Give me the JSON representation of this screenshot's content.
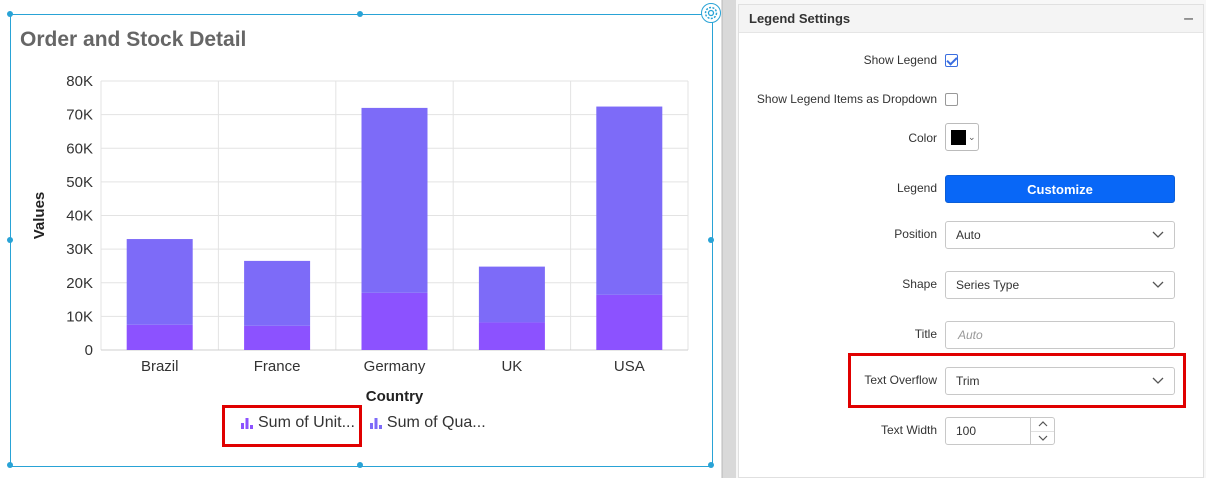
{
  "widget": {
    "title": "Order and Stock Detail"
  },
  "chart_data": {
    "type": "bar",
    "stacked": true,
    "categories": [
      "Brazil",
      "France",
      "Germany",
      "UK",
      "USA"
    ],
    "series": [
      {
        "name": "Sum of Unit...",
        "values": [
          7500,
          7200,
          17000,
          8200,
          16400
        ],
        "color": "#8c52ff"
      },
      {
        "name": "Sum of Qua...",
        "values": [
          25500,
          19300,
          55000,
          16600,
          56000
        ],
        "color": "#7d6bf8"
      }
    ],
    "xlabel": "Country",
    "ylabel": "Values",
    "ylim": [
      0,
      80000
    ],
    "yticks": [
      "0",
      "10K",
      "20K",
      "30K",
      "40K",
      "50K",
      "60K",
      "70K",
      "80K"
    ],
    "grid": true,
    "legend_position": "bottom"
  },
  "panel": {
    "title": "Legend Settings",
    "collapse_glyph": "–",
    "show_legend": {
      "label": "Show Legend",
      "checked": true
    },
    "dropdown_items": {
      "label": "Show Legend Items as Dropdown",
      "checked": false
    },
    "color": {
      "label": "Color",
      "value": "#000000"
    },
    "legend": {
      "label": "Legend",
      "button": "Customize"
    },
    "position": {
      "label": "Position",
      "value": "Auto"
    },
    "shape": {
      "label": "Shape",
      "value": "Series Type"
    },
    "title_field": {
      "label": "Title",
      "placeholder": "Auto"
    },
    "text_overflow": {
      "label": "Text Overflow",
      "value": "Trim"
    },
    "text_width": {
      "label": "Text Width",
      "value": "100"
    }
  },
  "colors": {
    "accent": "#0867f7",
    "highlight": "#e00000",
    "selection": "#29a3d6"
  }
}
